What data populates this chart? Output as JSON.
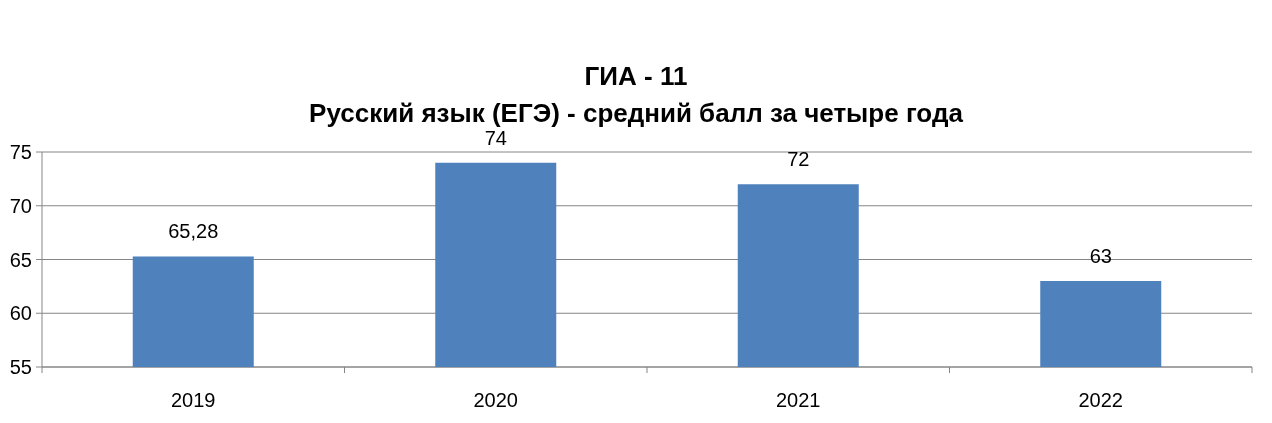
{
  "chart_data": {
    "type": "bar",
    "title": "ГИА - 11",
    "subtitle": "Русский язык (ЕГЭ) - средний балл за четыре года",
    "categories": [
      "2019",
      "2020",
      "2021",
      "2022"
    ],
    "values": [
      65.28,
      74,
      72,
      63
    ],
    "value_labels": [
      "65,28",
      "74",
      "72",
      "63"
    ],
    "color": "#4f81bd",
    "ylim": [
      55,
      75
    ],
    "yticks": [
      55,
      60,
      65,
      70,
      75
    ],
    "grid": "y"
  }
}
